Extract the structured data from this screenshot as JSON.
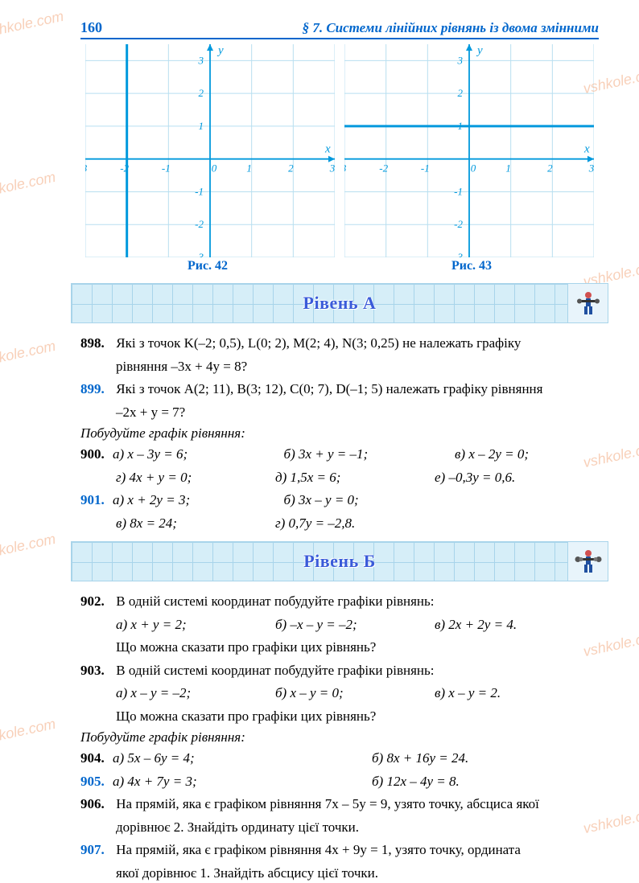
{
  "page_number": "160",
  "section_title": "§ 7. Системи лінійних рівнянь із двома змінними",
  "watermark_text": "vshkole.com",
  "graphs": {
    "left": {
      "caption": "Рис. 42",
      "xrange": [
        -3,
        3
      ],
      "yrange": [
        -3,
        3.5
      ],
      "xticks": [
        -3,
        -2,
        -1,
        0,
        1,
        2,
        3
      ],
      "yticks": [
        -3,
        -2,
        -1,
        1,
        2,
        3
      ],
      "grid_color": "#b8dff0",
      "axis_color": "#0099dd",
      "line_color": "#0099dd",
      "line": {
        "type": "vertical",
        "x": -2
      },
      "ylabel": "y",
      "xlabel": "x"
    },
    "right": {
      "caption": "Рис. 43",
      "xrange": [
        -3,
        3
      ],
      "yrange": [
        -3,
        3.5
      ],
      "xticks": [
        -3,
        -2,
        -1,
        0,
        1,
        2,
        3
      ],
      "yticks": [
        -3,
        -2,
        -1,
        1,
        2,
        3
      ],
      "grid_color": "#b8dff0",
      "axis_color": "#0099dd",
      "line_color": "#0099dd",
      "line": {
        "type": "horizontal",
        "y": 1
      },
      "ylabel": "y",
      "xlabel": "x"
    }
  },
  "levels": {
    "A": {
      "title": "Рівень А"
    },
    "B": {
      "title": "Рівень Б"
    }
  },
  "problems": {
    "p898": {
      "num": "898.",
      "line1": "Які з точок K(–2; 0,5), L(0; 2), M(2; 4), N(3; 0,25) не належать графіку",
      "line2": "рівняння –3x + 4y = 8?"
    },
    "p899": {
      "num": "899.",
      "line1": "Які з точок A(2; 11), B(3; 12), C(0; 7), D(–1; 5) належать графіку рівняння",
      "line2": "–2x + y = 7?"
    },
    "instr1": "Побудуйте графік рівняння:",
    "p900": {
      "num": "900.",
      "a": "а) x – 3y = 6;",
      "b": "б) 3x + y = –1;",
      "v": "в) x – 2y = 0;",
      "g": "г) 4x + y = 0;",
      "d": "д) 1,5x = 6;",
      "e": "е) –0,3y = 0,6."
    },
    "p901": {
      "num": "901.",
      "a": "а) x + 2y = 3;",
      "b": "б) 3x – y = 0;",
      "v": "в) 8x = 24;",
      "g": "г) 0,7y = –2,8."
    },
    "p902": {
      "num": "902.",
      "line1": "В одній системі координат побудуйте графіки рівнянь:",
      "a": "а) x + y = 2;",
      "b": "б) –x – y = –2;",
      "v": "в) 2x + 2y = 4.",
      "line2": "Що можна сказати про графіки цих рівнянь?"
    },
    "p903": {
      "num": "903.",
      "line1": "В одній системі координат побудуйте графіки рівнянь:",
      "a": "а) x – y = –2;",
      "b": "б) x – y = 0;",
      "v": "в) x – y = 2.",
      "line2": "Що можна сказати про графіки цих рівнянь?"
    },
    "instr2": "Побудуйте графік рівняння:",
    "p904": {
      "num": "904.",
      "a": "а) 5x – 6y = 4;",
      "b": "б) 8x + 16y = 24."
    },
    "p905": {
      "num": "905.",
      "a": "а) 4x + 7y = 3;",
      "b": "б) 12x – 4y = 8."
    },
    "p906": {
      "num": "906.",
      "line1": "На прямій, яка є графіком рівняння 7x – 5y = 9, узято точку, абсциса якої",
      "line2": "дорівнює 2. Знайдіть ординату цієї точки."
    },
    "p907": {
      "num": "907.",
      "line1": "На прямій, яка є графіком рівняння 4x + 9y = 1, узято точку, ордината",
      "line2": "якої дорівнює 1. Знайдіть абсцису цієї точки."
    }
  }
}
